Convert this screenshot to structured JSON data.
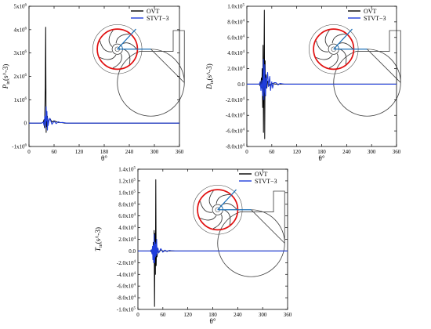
{
  "chart_data": [
    {
      "type": "line",
      "ylabel_main": "P",
      "ylabel_sub": "in",
      "ylabel_unit": "(s^-3)",
      "xlabel": "θ°",
      "xlim": [
        0,
        360
      ],
      "ylim": [
        -1000000,
        5000000
      ],
      "xticks": [
        0,
        60,
        120,
        180,
        240,
        300,
        360
      ],
      "yticks": [
        {
          "v": -1000000,
          "m": "-1x10",
          "e": "6"
        },
        {
          "v": 0,
          "m": "0",
          "e": ""
        },
        {
          "v": 1000000,
          "m": "1x10",
          "e": "6"
        },
        {
          "v": 2000000,
          "m": "2x10",
          "e": "6"
        },
        {
          "v": 3000000,
          "m": "3x10",
          "e": "6"
        },
        {
          "v": 4000000,
          "m": "4x10",
          "e": "6"
        },
        {
          "v": 5000000,
          "m": "5x10",
          "e": "6"
        }
      ],
      "legend_position": "top-right",
      "series": [
        {
          "name": "OVT",
          "color": "#000000",
          "x": [
            0,
            20,
            30,
            34,
            36,
            37,
            38,
            39,
            40,
            41,
            42,
            43,
            44,
            45,
            47,
            50,
            55,
            60,
            70,
            80,
            85,
            90,
            120,
            180,
            240,
            300,
            360
          ],
          "y": [
            0,
            0,
            0,
            30000,
            150000,
            -200000,
            700000,
            1500000,
            4100000,
            -400000,
            500000,
            -150000,
            300000,
            -100000,
            100000,
            200000,
            50000,
            100000,
            30000,
            20000,
            0,
            0,
            0,
            0,
            0,
            0,
            0
          ]
        },
        {
          "name": "STVT−3",
          "color": "#1f3ddb",
          "x": [
            0,
            20,
            30,
            34,
            36,
            38,
            40,
            41,
            42,
            43,
            44,
            45,
            46,
            48,
            50,
            55,
            60,
            65,
            70,
            75,
            80,
            90,
            120,
            180,
            240,
            300,
            360
          ],
          "y": [
            0,
            0,
            0,
            50000,
            -100000,
            300000,
            -200000,
            700000,
            100000,
            500000,
            -300000,
            200000,
            -100000,
            100000,
            200000,
            -50000,
            80000,
            -20000,
            60000,
            20000,
            30000,
            0,
            0,
            0,
            0,
            0,
            0
          ]
        }
      ]
    },
    {
      "type": "line",
      "ylabel_main": "D",
      "ylabel_sub": "in",
      "ylabel_unit": "(s^-3)",
      "xlabel": "θ°",
      "xlim": [
        0,
        360
      ],
      "ylim": [
        -80000,
        100000
      ],
      "xticks": [
        0,
        60,
        120,
        180,
        240,
        300,
        360
      ],
      "yticks": [
        {
          "v": -80000,
          "m": "-8.0x10",
          "e": "4"
        },
        {
          "v": -60000,
          "m": "-6.0x10",
          "e": "4"
        },
        {
          "v": -40000,
          "m": "-4.0x10",
          "e": "4"
        },
        {
          "v": -20000,
          "m": "-2.0x10",
          "e": "4"
        },
        {
          "v": 0,
          "m": "0.0",
          "e": ""
        },
        {
          "v": 20000,
          "m": "2.0x10",
          "e": "4"
        },
        {
          "v": 40000,
          "m": "4.0x10",
          "e": "4"
        },
        {
          "v": 60000,
          "m": "6.0x10",
          "e": "4"
        },
        {
          "v": 80000,
          "m": "8.0x10",
          "e": "4"
        },
        {
          "v": 100000,
          "m": "1.0x10",
          "e": "5"
        }
      ],
      "legend_position": "top-right",
      "series": [
        {
          "name": "OVT",
          "color": "#000000",
          "x": [
            0,
            20,
            30,
            33,
            35,
            36,
            37,
            38,
            39,
            40,
            41,
            42,
            43,
            44,
            45,
            46,
            48,
            50,
            55,
            60,
            70,
            80,
            90,
            120,
            180,
            240,
            300,
            360
          ],
          "y": [
            0,
            0,
            0,
            -3000,
            8000,
            -5000,
            20000,
            -30000,
            50000,
            -62000,
            15000,
            95000,
            -70000,
            30000,
            -10000,
            12000,
            -5000,
            4000,
            -2000,
            1000,
            0,
            0,
            0,
            0,
            0,
            0,
            0,
            0
          ]
        },
        {
          "name": "STVT−3",
          "color": "#1f3ddb",
          "x": [
            0,
            20,
            30,
            32,
            34,
            36,
            38,
            40,
            41,
            42,
            43,
            44,
            45,
            46,
            47,
            48,
            50,
            52,
            55,
            57,
            60,
            62,
            65,
            70,
            75,
            80,
            90,
            120,
            180,
            240,
            300,
            360
          ],
          "y": [
            0,
            0,
            0,
            3000,
            -8000,
            5000,
            -15000,
            32000,
            -20000,
            10000,
            25000,
            -10000,
            -15000,
            8000,
            -5000,
            5000,
            15000,
            -3000,
            10000,
            -8000,
            3000,
            -5000,
            2000,
            2000,
            -1000,
            1000,
            0,
            0,
            0,
            0,
            0,
            0
          ]
        }
      ]
    },
    {
      "type": "line",
      "ylabel_main": "T",
      "ylabel_sub": "in",
      "ylabel_unit": "(s^-3)",
      "xlabel": "θ°",
      "xlim": [
        0,
        360
      ],
      "ylim": [
        -100000,
        140000
      ],
      "xticks": [
        0,
        60,
        120,
        180,
        240,
        300,
        360
      ],
      "yticks": [
        {
          "v": -100000,
          "m": "-1.0x10",
          "e": "5"
        },
        {
          "v": -80000,
          "m": "-8.0x10",
          "e": "4"
        },
        {
          "v": -60000,
          "m": "-6.0x10",
          "e": "4"
        },
        {
          "v": -40000,
          "m": "-4.0x10",
          "e": "4"
        },
        {
          "v": -20000,
          "m": "-2.0x10",
          "e": "4"
        },
        {
          "v": 0,
          "m": "0.0",
          "e": ""
        },
        {
          "v": 20000,
          "m": "2.0x10",
          "e": "4"
        },
        {
          "v": 40000,
          "m": "4.0x10",
          "e": "4"
        },
        {
          "v": 60000,
          "m": "6.0x10",
          "e": "4"
        },
        {
          "v": 80000,
          "m": "8.0x10",
          "e": "4"
        },
        {
          "v": 100000,
          "m": "1.0x10",
          "e": "5"
        },
        {
          "v": 120000,
          "m": "1.2x10",
          "e": "5"
        },
        {
          "v": 140000,
          "m": "1.4x10",
          "e": "5"
        }
      ],
      "legend_position": "top-right",
      "series": [
        {
          "name": "OVT",
          "color": "#000000",
          "x": [
            0,
            20,
            30,
            33,
            35,
            36,
            37,
            38,
            39,
            40,
            41,
            42,
            43,
            44,
            45,
            46,
            48,
            50,
            55,
            60,
            70,
            80,
            90,
            120,
            180,
            240,
            300,
            360
          ],
          "y": [
            0,
            0,
            0,
            -2000,
            5000,
            -8000,
            15000,
            -20000,
            35000,
            -95000,
            30000,
            -40000,
            122000,
            -25000,
            15000,
            -10000,
            5000,
            -3000,
            2000,
            0,
            0,
            0,
            0,
            0,
            0,
            0,
            0,
            0
          ]
        },
        {
          "name": "STVT−3",
          "color": "#1f3ddb",
          "x": [
            0,
            20,
            30,
            32,
            34,
            35,
            36,
            37,
            38,
            39,
            40,
            41,
            42,
            43,
            44,
            45,
            46,
            48,
            50,
            55,
            60,
            65,
            70,
            75,
            80,
            90,
            120,
            180,
            240,
            300,
            360
          ],
          "y": [
            0,
            0,
            0,
            2000,
            -5000,
            8000,
            -15000,
            10000,
            -20000,
            28000,
            -20000,
            15000,
            -10000,
            12000,
            -8000,
            20000,
            -5000,
            5000,
            -3000,
            4000,
            -2000,
            1500,
            -1000,
            1000,
            500,
            0,
            0,
            0,
            0,
            0,
            0
          ]
        }
      ]
    }
  ]
}
